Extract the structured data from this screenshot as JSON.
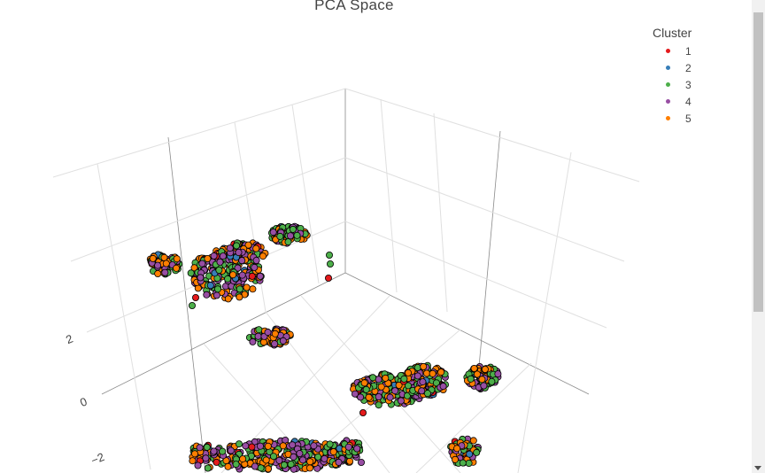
{
  "chart_data": {
    "type": "scatter3d",
    "title": "PCA Space",
    "legend": {
      "title": "Cluster",
      "position": "top-right",
      "items": [
        {
          "label": "1",
          "color": "#e41a1c"
        },
        {
          "label": "2",
          "color": "#377eb8"
        },
        {
          "label": "3",
          "color": "#4daf4a"
        },
        {
          "label": "4",
          "color": "#984ea3"
        },
        {
          "label": "5",
          "color": "#ff7f00"
        }
      ]
    },
    "z_ticks": [
      "2",
      "0",
      "−2"
    ],
    "grid": true,
    "marker_outline": "#000000"
  }
}
